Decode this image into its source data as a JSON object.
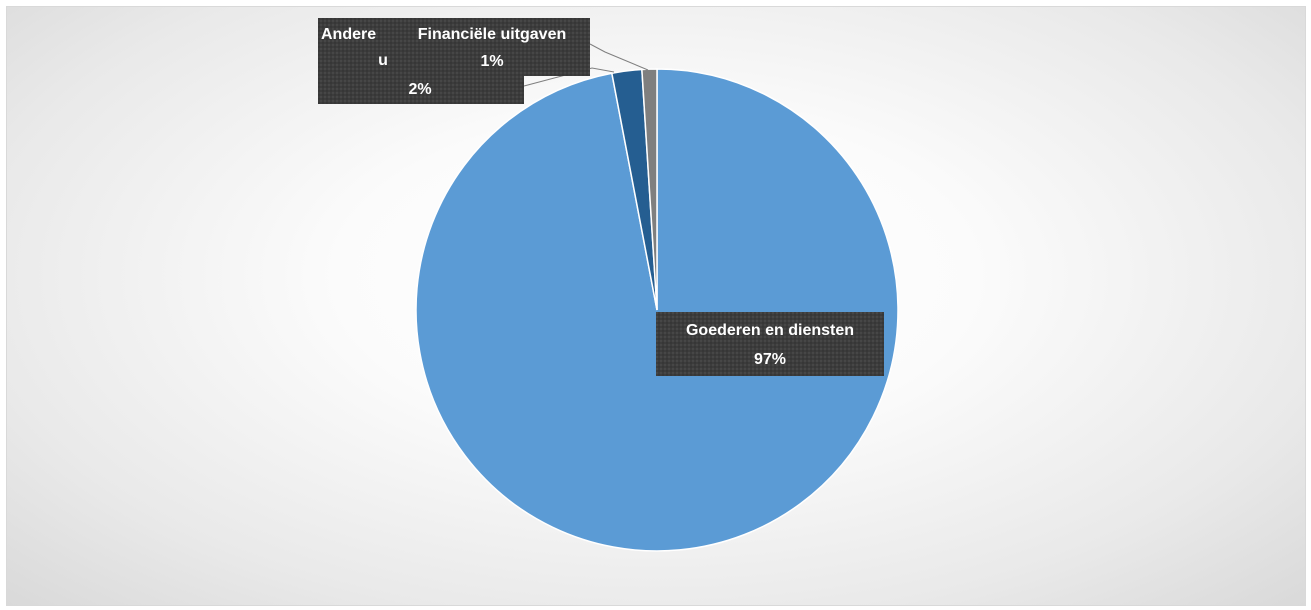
{
  "chart_data": {
    "type": "pie",
    "categories": [
      "Goederen en diensten",
      "Andere uitgaven",
      "Financiële uitgaven"
    ],
    "values": [
      97,
      2,
      1
    ],
    "colors": [
      "#5b9bd5",
      "#255e91",
      "#7f7f7f"
    ],
    "data_labels": [
      {
        "name": "Goederen en diensten",
        "percent": "97%"
      },
      {
        "name": "Andere uitgaven",
        "visible_line1": "Andere",
        "visible_line2": "u",
        "percent": "2%"
      },
      {
        "name": "Financiële uitgaven",
        "percent": "1%"
      }
    ],
    "label_style": {
      "background": "#3a3a3a",
      "text_color": "#ffffff"
    }
  }
}
